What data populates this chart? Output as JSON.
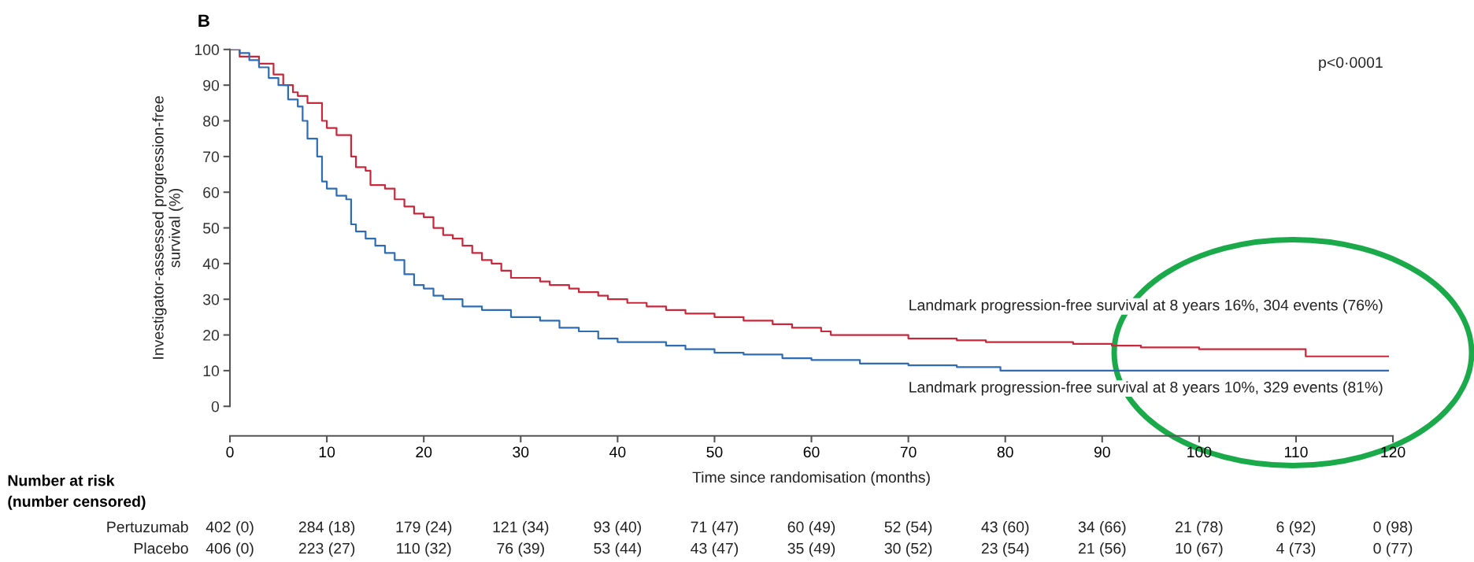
{
  "chart_data": {
    "type": "step",
    "title": "B",
    "xlabel": "Time since randomisation (months)",
    "ylabel": "Investigator-assessed progression-free\nsurvival (%)",
    "xlim": [
      0,
      120
    ],
    "xticks": [
      0,
      10,
      20,
      30,
      40,
      50,
      60,
      70,
      80,
      90,
      100,
      110,
      120
    ],
    "ylim": [
      0,
      100
    ],
    "yticks": [
      0,
      10,
      20,
      30,
      40,
      50,
      60,
      70,
      80,
      90,
      100
    ],
    "grid": false,
    "marker": "none",
    "line_style": "solid",
    "series": [
      {
        "color": "#c8283c",
        "x": [
          0,
          1,
          3,
          4.5,
          5.5,
          6.5,
          7,
          8,
          9.5,
          10,
          11,
          12.5,
          13,
          14,
          14.5,
          16,
          17,
          18,
          19,
          20,
          21,
          22,
          23,
          24,
          25,
          26,
          27,
          28,
          29,
          30,
          32,
          33,
          35,
          36,
          38,
          39,
          41,
          43,
          45,
          47,
          50,
          53,
          56,
          58,
          61,
          62,
          70,
          75,
          78,
          87,
          91,
          94,
          100,
          110,
          111,
          119.5
        ],
        "values": [
          100,
          98,
          96,
          93,
          90,
          88,
          87,
          85,
          80,
          78,
          76,
          70,
          67,
          66,
          62,
          61,
          58,
          56,
          54,
          53,
          50,
          48,
          47,
          45,
          43,
          41,
          40,
          38,
          36,
          36,
          35,
          34,
          33,
          32,
          31,
          30,
          29,
          28,
          27,
          26,
          25,
          24,
          23,
          22,
          21,
          20,
          19,
          18.5,
          18,
          17.5,
          17,
          16.5,
          16,
          16,
          14,
          14
        ]
      },
      {
        "color": "#2e6db4",
        "x": [
          0,
          1,
          2,
          3,
          4,
          5,
          6,
          7,
          7.5,
          8,
          9,
          9.5,
          10,
          11,
          12,
          12.5,
          13,
          14,
          15,
          16,
          17,
          18,
          19,
          20,
          21,
          22,
          24,
          26,
          29,
          32,
          34,
          36,
          38,
          40,
          45,
          47,
          50,
          53,
          57,
          60,
          65,
          70,
          75,
          78,
          79.5,
          119.5
        ],
        "values": [
          100,
          99,
          97,
          95,
          92,
          90,
          86,
          84,
          80,
          75,
          70,
          63,
          61,
          59,
          58,
          51,
          49,
          47,
          45,
          43,
          41,
          37,
          34,
          33,
          31,
          30,
          28,
          27,
          25,
          24,
          22,
          21,
          19,
          18,
          17,
          16,
          15,
          14.5,
          13.5,
          13,
          12,
          11.5,
          11,
          11,
          10,
          10
        ]
      }
    ],
    "annotations": [
      "p<0·0001",
      "Landmark progression-free survival at 8 years 16%, 304 events (76%)",
      "Landmark progression-free survival at 8 years 10%, 329 events (81%)",
      "Number at risk\n(number censored)",
      "Pertuzumab",
      "402 (0)",
      "284 (18)",
      "179 (24)",
      "121 (34)",
      "93 (40)",
      "71 (47)",
      "60 (49)",
      "52 (54)",
      "43 (60)",
      "34 (66)",
      "21 (78)",
      "6 (92)",
      "0 (98)",
      "Placebo",
      "406 (0)",
      "223 (27)",
      "110 (32)",
      "76 (39)",
      "53 (44)",
      "43 (47)",
      "35 (49)",
      "30 (52)",
      "23 (54)",
      "21 (56)",
      "10 (67)",
      "4 (73)",
      "0 (77)"
    ]
  }
}
